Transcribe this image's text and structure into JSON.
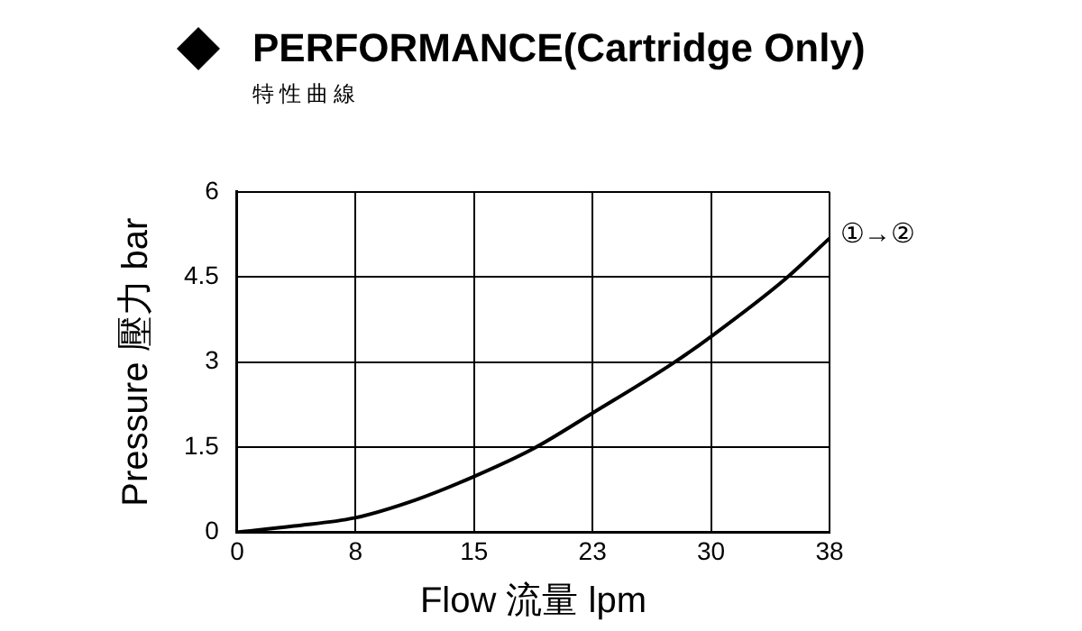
{
  "chart_data": {
    "type": "line",
    "title": "PERFORMANCE(Cartridge Only)",
    "subtitle": "特性曲線",
    "xlabel": "Flow 流量 lpm",
    "ylabel": "Pressure 壓力 bar",
    "series": [
      {
        "color": "#000000",
        "x": [
          0,
          3.6,
          7.4,
          11.3,
          14.9,
          18.8,
          22.5,
          27.6,
          30.1,
          34.6,
          37.5
        ],
        "values": [
          0,
          0.11,
          0.25,
          0.57,
          0.97,
          1.48,
          2.1,
          2.98,
          3.47,
          4.44,
          5.18
        ]
      }
    ],
    "xlim": [
      0,
      37.5
    ],
    "xticks": [
      0,
      {
        "value": 7.5,
        "label": "8"
      },
      15,
      {
        "value": 22.5,
        "label": "23"
      },
      30,
      {
        "value": 37.5,
        "label": "38"
      }
    ],
    "ylim": [
      0,
      6
    ],
    "yticks": [
      0,
      1.5,
      3,
      4.5,
      6
    ],
    "grid": true,
    "legend": false,
    "marker": "none",
    "line_style": "solid",
    "annotations": [
      {
        "text": "①→②",
        "x": 37.5,
        "y": 5.18
      }
    ]
  }
}
